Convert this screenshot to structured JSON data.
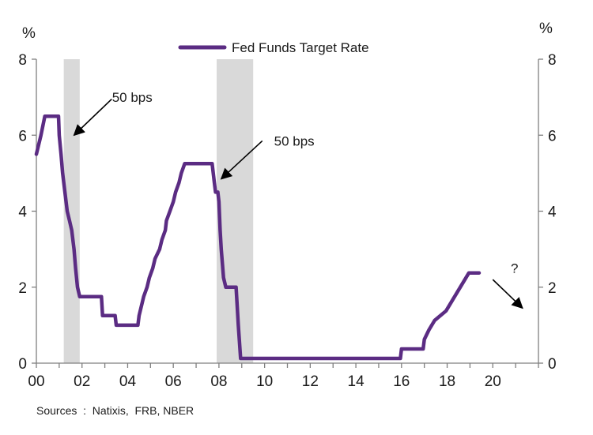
{
  "chart_data": {
    "type": "line",
    "title": "",
    "xlabel": "",
    "ylabel_left": "%",
    "ylabel_right": "%",
    "xlim": [
      2000,
      2022
    ],
    "ylim": [
      0,
      8
    ],
    "x_ticks": [
      2000,
      2002,
      2004,
      2006,
      2008,
      2010,
      2012,
      2014,
      2016,
      2018,
      2020
    ],
    "x_tick_labels": [
      "00",
      "02",
      "04",
      "06",
      "08",
      "10",
      "12",
      "14",
      "16",
      "18",
      "20"
    ],
    "y_ticks": [
      0,
      2,
      4,
      6,
      8
    ],
    "y_tick_labels": [
      "0",
      "2",
      "4",
      "6",
      "8"
    ],
    "grid": false,
    "legend": {
      "placement": "top-center",
      "entries": [
        "Fed Funds Target Rate"
      ]
    },
    "colors": {
      "series": "#5b2c83",
      "recession": "#d9d9d9",
      "axis": "#7f7f7f"
    },
    "recessions": [
      {
        "start": 2001.2,
        "end": 2001.9
      },
      {
        "start": 2007.9,
        "end": 2009.5
      }
    ],
    "series": [
      {
        "name": "Fed Funds Target Rate",
        "points": [
          [
            2000.0,
            5.5
          ],
          [
            2000.1,
            5.75
          ],
          [
            2000.2,
            6.0
          ],
          [
            2000.37,
            6.5
          ],
          [
            2000.97,
            6.5
          ],
          [
            2001.0,
            6.0
          ],
          [
            2001.08,
            5.5
          ],
          [
            2001.15,
            5.0
          ],
          [
            2001.25,
            4.5
          ],
          [
            2001.35,
            4.0
          ],
          [
            2001.45,
            3.75
          ],
          [
            2001.55,
            3.5
          ],
          [
            2001.65,
            3.0
          ],
          [
            2001.72,
            2.5
          ],
          [
            2001.8,
            2.0
          ],
          [
            2001.9,
            1.75
          ],
          [
            2002.85,
            1.75
          ],
          [
            2002.9,
            1.25
          ],
          [
            2003.45,
            1.25
          ],
          [
            2003.5,
            1.0
          ],
          [
            2004.45,
            1.0
          ],
          [
            2004.5,
            1.25
          ],
          [
            2004.6,
            1.5
          ],
          [
            2004.7,
            1.75
          ],
          [
            2004.85,
            2.0
          ],
          [
            2004.95,
            2.25
          ],
          [
            2005.1,
            2.5
          ],
          [
            2005.2,
            2.75
          ],
          [
            2005.4,
            3.0
          ],
          [
            2005.5,
            3.25
          ],
          [
            2005.65,
            3.5
          ],
          [
            2005.7,
            3.75
          ],
          [
            2005.85,
            4.0
          ],
          [
            2006.0,
            4.25
          ],
          [
            2006.1,
            4.5
          ],
          [
            2006.25,
            4.75
          ],
          [
            2006.35,
            5.0
          ],
          [
            2006.5,
            5.25
          ],
          [
            2007.7,
            5.25
          ],
          [
            2007.8,
            4.75
          ],
          [
            2007.85,
            4.5
          ],
          [
            2007.95,
            4.5
          ],
          [
            2008.0,
            4.25
          ],
          [
            2008.05,
            3.5
          ],
          [
            2008.1,
            3.0
          ],
          [
            2008.2,
            2.25
          ],
          [
            2008.3,
            2.0
          ],
          [
            2008.75,
            2.0
          ],
          [
            2008.8,
            1.5
          ],
          [
            2008.85,
            1.0
          ],
          [
            2008.95,
            0.125
          ],
          [
            2015.95,
            0.125
          ],
          [
            2016.0,
            0.375
          ],
          [
            2016.95,
            0.375
          ],
          [
            2017.0,
            0.625
          ],
          [
            2017.2,
            0.875
          ],
          [
            2017.45,
            1.125
          ],
          [
            2017.95,
            1.375
          ],
          [
            2018.2,
            1.625
          ],
          [
            2018.45,
            1.875
          ],
          [
            2018.7,
            2.125
          ],
          [
            2018.95,
            2.375
          ],
          [
            2019.4,
            2.375
          ]
        ]
      }
    ],
    "annotations": [
      {
        "text": "50 bps",
        "arrow_from": [
          2003.3,
          6.95
        ],
        "arrow_to": [
          2001.65,
          6.0
        ],
        "label_at": [
          2004.2,
          7.0
        ]
      },
      {
        "text": "50 bps",
        "arrow_from": [
          2009.9,
          5.85
        ],
        "arrow_to": [
          2008.1,
          4.85
        ],
        "label_at": [
          2011.3,
          5.85
        ]
      },
      {
        "text": "?",
        "arrow_from": [
          2020.0,
          2.2
        ],
        "arrow_to": [
          2021.3,
          1.45
        ],
        "label_at": [
          2020.95,
          2.5
        ]
      }
    ]
  },
  "footer": {
    "sources": "Sources  :  Natixis,  FRB, NBER"
  }
}
